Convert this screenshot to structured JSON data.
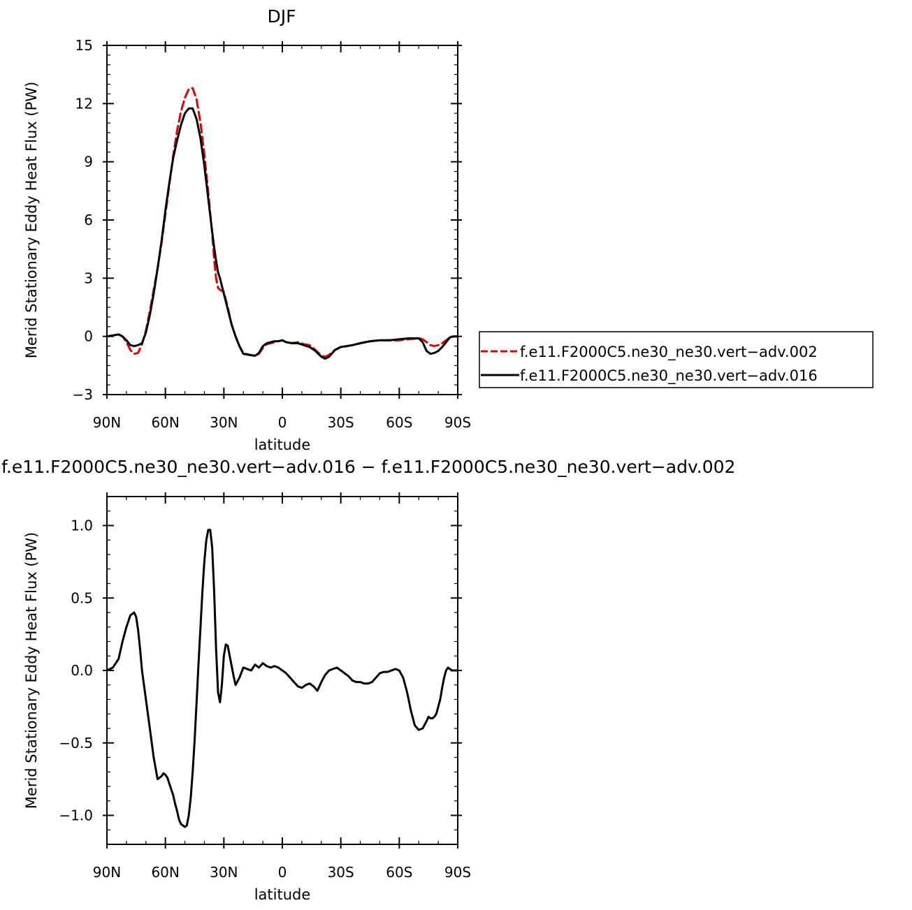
{
  "chart_data": [
    {
      "type": "line",
      "title": "DJF",
      "xlabel": "latitude",
      "ylabel": "Merid Stationary Eddy Heat Flux (PW)",
      "xlim": [
        90,
        -90
      ],
      "ylim": [
        -3,
        15
      ],
      "xticks": [
        90,
        60,
        30,
        0,
        -30,
        -60,
        -90
      ],
      "xtick_labels": [
        "90N",
        "60N",
        "30N",
        "0",
        "30S",
        "60S",
        "90S"
      ],
      "yticks": [
        -3,
        0,
        3,
        6,
        9,
        12,
        15
      ],
      "ytick_labels": [
        "−3",
        "0",
        "3",
        "6",
        "9",
        "12",
        "15"
      ],
      "legend_position": "right",
      "series": [
        {
          "name": "f.e11.F2000C5.ne30_ne30.vert−adv.002",
          "color": "#e00000",
          "dash": "dashed",
          "x": [
            90,
            87,
            84,
            82,
            80,
            78,
            76,
            74,
            72,
            70,
            68,
            66,
            64,
            62,
            60,
            58,
            56,
            54,
            52,
            50,
            48,
            46,
            44,
            42,
            40,
            38,
            36,
            35,
            34,
            33,
            32,
            30,
            28,
            26,
            24,
            22,
            20,
            17,
            14,
            12,
            10,
            8,
            6,
            4,
            2,
            0,
            -2,
            -5,
            -8,
            -11,
            -14,
            -17,
            -20,
            -22,
            -24,
            -27,
            -30,
            -33,
            -36,
            -40,
            -45,
            -50,
            -55,
            -60,
            -65,
            -70,
            -72,
            -74,
            -76,
            -78,
            -80,
            -82,
            -84,
            -86,
            -88,
            -90
          ],
          "y": [
            0.0,
            0.05,
            0.1,
            0.0,
            -0.3,
            -0.7,
            -0.9,
            -0.85,
            -0.4,
            0.3,
            1.3,
            2.4,
            3.5,
            4.8,
            6.3,
            7.8,
            9.3,
            10.6,
            11.6,
            12.3,
            12.75,
            12.8,
            12.2,
            11.0,
            9.4,
            7.4,
            5.3,
            4.0,
            3.0,
            2.5,
            2.4,
            2.3,
            1.5,
            0.6,
            0.0,
            -0.5,
            -0.85,
            -0.95,
            -1.0,
            -0.9,
            -0.6,
            -0.4,
            -0.35,
            -0.3,
            -0.25,
            -0.2,
            -0.3,
            -0.35,
            -0.3,
            -0.4,
            -0.45,
            -0.7,
            -1.0,
            -1.05,
            -0.95,
            -0.7,
            -0.55,
            -0.5,
            -0.45,
            -0.35,
            -0.25,
            -0.2,
            -0.2,
            -0.2,
            -0.15,
            -0.1,
            -0.15,
            -0.3,
            -0.45,
            -0.5,
            -0.45,
            -0.35,
            -0.2,
            -0.05,
            0.0,
            0.0
          ]
        },
        {
          "name": "f.e11.F2000C5.ne30_ne30.vert−adv.016",
          "color": "#000000",
          "dash": "solid",
          "x": [
            90,
            87,
            84,
            82,
            80,
            78,
            76,
            74,
            72,
            70,
            68,
            66,
            64,
            62,
            60,
            58,
            56,
            54,
            52,
            50,
            48,
            46,
            44,
            42,
            40,
            38,
            36,
            35,
            34,
            33,
            32,
            30,
            28,
            26,
            24,
            22,
            20,
            17,
            14,
            12,
            10,
            8,
            6,
            4,
            2,
            0,
            -2,
            -5,
            -8,
            -11,
            -14,
            -17,
            -20,
            -22,
            -24,
            -27,
            -30,
            -33,
            -36,
            -40,
            -45,
            -50,
            -55,
            -60,
            -65,
            -70,
            -72,
            -74,
            -76,
            -78,
            -80,
            -82,
            -84,
            -86,
            -88,
            -90
          ],
          "y": [
            0.0,
            0.05,
            0.1,
            0.0,
            -0.2,
            -0.45,
            -0.5,
            -0.45,
            -0.35,
            0.2,
            1.1,
            2.2,
            3.5,
            4.9,
            6.5,
            7.9,
            9.2,
            10.1,
            10.9,
            11.5,
            11.75,
            11.75,
            11.2,
            10.2,
            8.8,
            7.1,
            5.4,
            4.6,
            3.9,
            3.3,
            3.0,
            2.2,
            1.4,
            0.6,
            0.0,
            -0.5,
            -0.9,
            -0.95,
            -1.0,
            -0.85,
            -0.5,
            -0.35,
            -0.3,
            -0.25,
            -0.25,
            -0.2,
            -0.3,
            -0.35,
            -0.35,
            -0.45,
            -0.55,
            -0.75,
            -1.05,
            -1.15,
            -1.05,
            -0.7,
            -0.55,
            -0.5,
            -0.45,
            -0.35,
            -0.25,
            -0.2,
            -0.2,
            -0.15,
            -0.1,
            -0.1,
            -0.3,
            -0.75,
            -0.9,
            -0.85,
            -0.75,
            -0.55,
            -0.3,
            -0.05,
            0.0,
            0.0
          ]
        }
      ]
    },
    {
      "type": "line",
      "title": "f.e11.F2000C5.ne30_ne30.vert−adv.016 − f.e11.F2000C5.ne30_ne30.vert−adv.002",
      "xlabel": "latitude",
      "ylabel": "Merid Stationary Eddy Heat Flux (PW)",
      "xlim": [
        90,
        -90
      ],
      "ylim": [
        -1.2,
        1.2
      ],
      "xticks": [
        90,
        60,
        30,
        0,
        -30,
        -60,
        -90
      ],
      "xtick_labels": [
        "90N",
        "60N",
        "30N",
        "0",
        "30S",
        "60S",
        "90S"
      ],
      "yticks": [
        -1.0,
        -0.5,
        0.0,
        0.5,
        1.0
      ],
      "ytick_labels": [
        "−1.0",
        "−0.5",
        "0.0",
        "0.5",
        "1.0"
      ],
      "series": [
        {
          "color": "#000000",
          "dash": "solid",
          "x": [
            90,
            87,
            84,
            82,
            80,
            78,
            76,
            75,
            74,
            73,
            72,
            70,
            68,
            66,
            64,
            62,
            61,
            60,
            59,
            58,
            57,
            56,
            55,
            54,
            53,
            52,
            51,
            50,
            49,
            48,
            47,
            46,
            45,
            44,
            43,
            42,
            41,
            40,
            39,
            38,
            37,
            36,
            35,
            34,
            33,
            32,
            31,
            30,
            29,
            28,
            27,
            26,
            25,
            24,
            22,
            20,
            18,
            16,
            14,
            12,
            10,
            8,
            6,
            4,
            2,
            0,
            -2,
            -4,
            -6,
            -8,
            -10,
            -12,
            -14,
            -16,
            -18,
            -20,
            -22,
            -24,
            -26,
            -28,
            -30,
            -32,
            -34,
            -36,
            -38,
            -40,
            -42,
            -44,
            -46,
            -48,
            -50,
            -52,
            -54,
            -56,
            -58,
            -60,
            -62,
            -64,
            -66,
            -68,
            -70,
            -72,
            -74,
            -75,
            -76,
            -77,
            -78,
            -79,
            -80,
            -81,
            -82,
            -83,
            -84,
            -85,
            -86,
            -87,
            -88,
            -89,
            -90
          ],
          "y": [
            0.0,
            0.02,
            0.08,
            0.2,
            0.3,
            0.38,
            0.4,
            0.37,
            0.28,
            0.15,
            0.0,
            -0.2,
            -0.4,
            -0.6,
            -0.75,
            -0.73,
            -0.71,
            -0.72,
            -0.74,
            -0.78,
            -0.82,
            -0.86,
            -0.92,
            -0.97,
            -1.03,
            -1.06,
            -1.07,
            -1.08,
            -1.07,
            -1.0,
            -0.88,
            -0.7,
            -0.48,
            -0.22,
            0.05,
            0.3,
            0.55,
            0.75,
            0.9,
            0.97,
            0.97,
            0.85,
            0.55,
            0.15,
            -0.15,
            -0.22,
            -0.1,
            0.1,
            0.18,
            0.17,
            0.1,
            0.03,
            -0.04,
            -0.1,
            -0.05,
            0.02,
            0.01,
            0.0,
            0.04,
            0.02,
            0.05,
            0.03,
            0.02,
            0.03,
            0.02,
            0.0,
            -0.02,
            -0.05,
            -0.08,
            -0.11,
            -0.12,
            -0.1,
            -0.09,
            -0.11,
            -0.14,
            -0.08,
            -0.03,
            0.0,
            0.01,
            0.02,
            0.0,
            -0.02,
            -0.04,
            -0.07,
            -0.08,
            -0.08,
            -0.09,
            -0.09,
            -0.08,
            -0.05,
            -0.02,
            -0.01,
            -0.01,
            0.0,
            0.01,
            0.0,
            -0.05,
            -0.15,
            -0.28,
            -0.38,
            -0.41,
            -0.4,
            -0.35,
            -0.32,
            -0.33,
            -0.33,
            -0.32,
            -0.3,
            -0.25,
            -0.2,
            -0.12,
            -0.05,
            0.0,
            0.02,
            0.01,
            0.0,
            0.0,
            0.0,
            0.0
          ]
        }
      ]
    }
  ]
}
